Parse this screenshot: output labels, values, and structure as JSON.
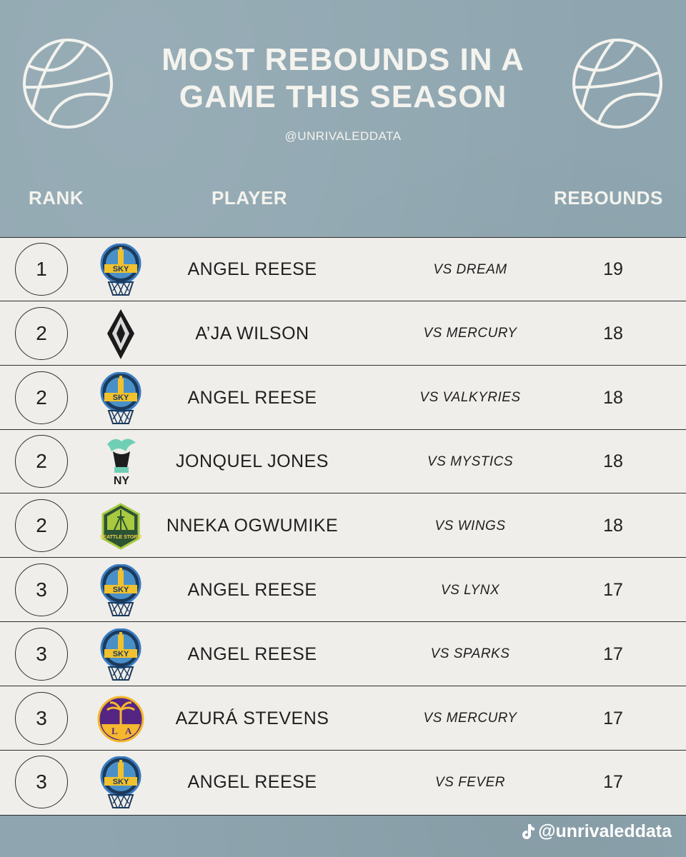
{
  "header": {
    "title_line1": "MOST REBOUNDS IN A",
    "title_line2": "GAME THIS SEASON",
    "handle": "@UNRIVALEDDATA",
    "icons": [
      "basketball-icon",
      "basketball-icon"
    ]
  },
  "columns": {
    "rank": "RANK",
    "player": "PLAYER",
    "rebounds": "REBOUNDS"
  },
  "rows": [
    {
      "rank": "1",
      "team_logo": "chicago-sky-logo",
      "player": "ANGEL REESE",
      "opponent": "VS DREAM",
      "rebounds": "19"
    },
    {
      "rank": "2",
      "team_logo": "las-vegas-aces-logo",
      "player": "A’JA WILSON",
      "opponent": "VS MERCURY",
      "rebounds": "18"
    },
    {
      "rank": "2",
      "team_logo": "chicago-sky-logo",
      "player": "ANGEL REESE",
      "opponent": "VS VALKYRIES",
      "rebounds": "18"
    },
    {
      "rank": "2",
      "team_logo": "new-york-liberty-logo",
      "player": "JONQUEL JONES",
      "opponent": "VS MYSTICS",
      "rebounds": "18"
    },
    {
      "rank": "2",
      "team_logo": "seattle-storm-logo",
      "player": "NNEKA OGWUMIKE",
      "opponent": "VS WINGS",
      "rebounds": "18"
    },
    {
      "rank": "3",
      "team_logo": "chicago-sky-logo",
      "player": "ANGEL REESE",
      "opponent": "VS LYNX",
      "rebounds": "17"
    },
    {
      "rank": "3",
      "team_logo": "chicago-sky-logo",
      "player": "ANGEL REESE",
      "opponent": "VS SPARKS",
      "rebounds": "17"
    },
    {
      "rank": "3",
      "team_logo": "los-angeles-sparks-logo",
      "player": "AZURÁ STEVENS",
      "opponent": "VS MERCURY",
      "rebounds": "17"
    },
    {
      "rank": "3",
      "team_logo": "chicago-sky-logo",
      "player": "ANGEL REESE",
      "opponent": "VS FEVER",
      "rebounds": "17"
    }
  ],
  "footer": {
    "handle": "@unrivaleddata",
    "icon": "tiktok-icon"
  },
  "colors": {
    "background": "#8fa6b0",
    "table": "#efeeea",
    "text_light": "#f4f3ee",
    "text_dark": "#1f1f1f"
  }
}
